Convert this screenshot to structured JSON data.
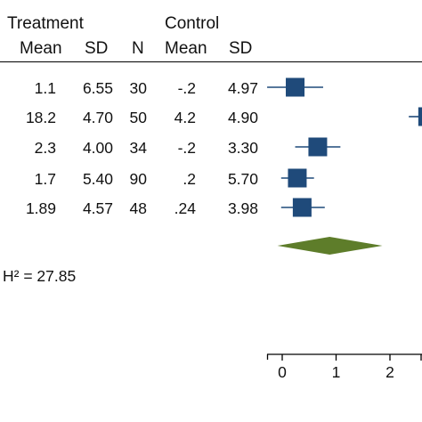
{
  "headers": {
    "group1": "Treatment",
    "group2": "Control",
    "mean": "Mean",
    "sd": "SD",
    "n": "N"
  },
  "rows": [
    {
      "t_mean": "1.1",
      "t_sd": "6.55",
      "t_n": "30",
      "c_mean": "-.2",
      "c_sd": "4.97"
    },
    {
      "t_mean": "18.2",
      "t_sd": "4.70",
      "t_n": "50",
      "c_mean": "4.2",
      "c_sd": "4.90"
    },
    {
      "t_mean": "2.3",
      "t_sd": "4.00",
      "t_n": "34",
      "c_mean": "-.2",
      "c_sd": "3.30"
    },
    {
      "t_mean": "1.7",
      "t_sd": "5.40",
      "t_n": "90",
      "c_mean": ".2",
      "c_sd": "5.70"
    },
    {
      "t_mean": "1.89",
      "t_sd": "4.57",
      "t_n": "48",
      "c_mean": ".24",
      "c_sd": "3.98"
    }
  ],
  "heterogeneity": "H² = 27.85",
  "chart_data": {
    "type": "forest",
    "x_ticks": [
      0,
      1,
      2
    ],
    "xlim": [
      -0.25,
      2.55
    ],
    "studies": [
      {
        "estimate": 0.24,
        "ci_low": -0.28,
        "ci_high": 0.76
      },
      {
        "estimate": 2.7,
        "ci_low": 2.35,
        "ci_high": 3.05
      },
      {
        "estimate": 0.66,
        "ci_low": 0.24,
        "ci_high": 1.08
      },
      {
        "estimate": 0.28,
        "ci_low": -0.02,
        "ci_high": 0.59
      },
      {
        "estimate": 0.37,
        "ci_low": -0.02,
        "ci_high": 0.79
      }
    ],
    "overall": {
      "estimate": 0.88,
      "ci_low": -0.09,
      "ci_high": 1.86
    },
    "colors": {
      "study_marker": "#1f4a7a",
      "overall_marker": "#5e7d2a",
      "axis": "#000000"
    }
  }
}
